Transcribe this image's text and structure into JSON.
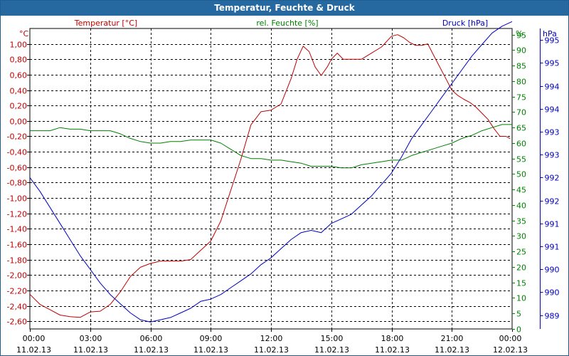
{
  "window": {
    "title": "Temperatur, Feuchte & Druck"
  },
  "chart_data": {
    "type": "line",
    "title": "Temperatur, Feuchte & Druck",
    "colors": {
      "temperature": "#c00000",
      "humidity": "#008000",
      "pressure": "#0000c0",
      "grid": "#000000"
    },
    "grid": true,
    "axes": {
      "temperature": {
        "side": "left",
        "unit": "°C",
        "label": "Temperatur [°C]",
        "range": [
          -2.7,
          1.2
        ],
        "ticks": [
          "1,00",
          "0,80",
          "0,60",
          "0,40",
          "0,20",
          "0,00",
          "-0,20",
          "-0,40",
          "-0,60",
          "-0,80",
          "-1,00",
          "-1,20",
          "-1,40",
          "-1,60",
          "-1,80",
          "-2,00",
          "-2,20",
          "-2,40",
          "-2,60"
        ]
      },
      "humidity": {
        "side": "right",
        "unit": "%",
        "label": "rel. Feuchte [%]",
        "range": [
          0,
          97
        ],
        "ticks": [
          "95",
          "90",
          "85",
          "80",
          "75",
          "70",
          "65",
          "60",
          "55",
          "50",
          "45",
          "40",
          "35",
          "30",
          "25",
          "20",
          "15",
          "10",
          "5",
          "0"
        ]
      },
      "pressure": {
        "side": "right",
        "unit": "hPa",
        "label": "Druck [hPa]",
        "range": [
          988.7,
          995.25
        ],
        "ticks": [
          "995",
          "995",
          "994",
          "994",
          "993",
          "993",
          "992",
          "992",
          "991",
          "991",
          "990",
          "990",
          "989"
        ]
      }
    },
    "x": {
      "range_hours": [
        0,
        24
      ],
      "ticks": [
        {
          "time": "00:00",
          "date": "11.02.13"
        },
        {
          "time": "03:00",
          "date": "11.02.13"
        },
        {
          "time": "06:00",
          "date": "11.02.13"
        },
        {
          "time": "09:00",
          "date": "11.02.13"
        },
        {
          "time": "12:00",
          "date": "11.02.13"
        },
        {
          "time": "15:00",
          "date": "11.02.13"
        },
        {
          "time": "18:00",
          "date": "11.02.13"
        },
        {
          "time": "21:00",
          "date": "11.02.13"
        },
        {
          "time": "00:00",
          "date": "12.02.13"
        }
      ]
    },
    "series": [
      {
        "name": "Temperatur [°C]",
        "axis": "temperature",
        "x": [
          0,
          0.5,
          1,
          1.5,
          2,
          2.5,
          3,
          3.5,
          4,
          4.5,
          5,
          5.5,
          6,
          6.5,
          7,
          7.5,
          8,
          8.5,
          9,
          9.5,
          10,
          10.5,
          11,
          11.5,
          12,
          12.5,
          13,
          13.3,
          13.6,
          13.9,
          14.2,
          14.5,
          14.8,
          15,
          15.3,
          15.6,
          16,
          16.5,
          17,
          17.5,
          18,
          18.3,
          18.6,
          18.9,
          19.2,
          19.5,
          19.8,
          20.1,
          20.4,
          20.7,
          21,
          21.3,
          21.6,
          21.9,
          22.2,
          22.5,
          22.8,
          23.1,
          23.4,
          23.7,
          23.9
        ],
        "values": [
          -2.25,
          -2.38,
          -2.45,
          -2.52,
          -2.54,
          -2.55,
          -2.48,
          -2.47,
          -2.38,
          -2.22,
          -2.02,
          -1.9,
          -1.85,
          -1.82,
          -1.82,
          -1.82,
          -1.8,
          -1.68,
          -1.56,
          -1.3,
          -0.9,
          -0.5,
          -0.05,
          0.12,
          0.14,
          0.22,
          0.55,
          0.8,
          0.97,
          0.9,
          0.7,
          0.59,
          0.7,
          0.8,
          0.88,
          0.8,
          0.8,
          0.8,
          0.88,
          0.96,
          1.1,
          1.12,
          1.08,
          1.02,
          0.98,
          0.98,
          1.0,
          0.85,
          0.7,
          0.55,
          0.4,
          0.33,
          0.28,
          0.24,
          0.18,
          0.1,
          0.02,
          -0.1,
          -0.2,
          -0.2,
          -0.23
        ]
      },
      {
        "name": "rel. Feuchte [%]",
        "axis": "humidity",
        "x": [
          0,
          0.5,
          1,
          1.5,
          2,
          2.5,
          3,
          3.5,
          4,
          4.5,
          5,
          5.5,
          6,
          6.5,
          7,
          7.5,
          8,
          8.5,
          9,
          9.5,
          10,
          10.5,
          11,
          11.5,
          12,
          12.5,
          13,
          13.5,
          14,
          14.5,
          15,
          15.5,
          16,
          16.5,
          17,
          17.5,
          18,
          18.5,
          19,
          19.5,
          20,
          20.5,
          21,
          21.5,
          22,
          22.5,
          23,
          23.5,
          24
        ],
        "values": [
          64,
          64,
          64,
          65,
          64.5,
          64.5,
          64,
          64,
          64,
          63,
          61.5,
          60.5,
          60,
          60,
          60.5,
          60.5,
          61,
          61,
          61,
          60,
          58,
          56,
          55,
          55,
          54.5,
          54.5,
          54,
          53.5,
          52.5,
          52.5,
          52.5,
          52,
          52,
          53,
          53.5,
          54,
          54.5,
          54.5,
          56,
          57,
          58,
          59,
          60,
          61.5,
          62.5,
          64,
          65,
          66,
          66
        ]
      },
      {
        "name": "Druck [hPa]",
        "axis": "pressure",
        "x": [
          0,
          0.5,
          1,
          1.5,
          2,
          2.5,
          3,
          3.5,
          4,
          4.5,
          5,
          5.5,
          6,
          6.5,
          7,
          7.5,
          8,
          8.5,
          9,
          9.5,
          10,
          10.5,
          11,
          11.5,
          12,
          12.5,
          13,
          13.5,
          14,
          14.5,
          15,
          15.5,
          16,
          16.5,
          17,
          17.5,
          18,
          18.5,
          19,
          19.5,
          20,
          20.5,
          21,
          21.5,
          22,
          22.5,
          23,
          23.5,
          24
        ],
        "values": [
          992,
          991.7,
          991.35,
          991,
          990.65,
          990.3,
          990,
          989.7,
          989.45,
          989.25,
          989.05,
          988.9,
          988.85,
          988.9,
          988.95,
          989.05,
          989.15,
          989.3,
          989.35,
          989.45,
          989.6,
          989.75,
          989.9,
          990.1,
          990.25,
          990.45,
          990.65,
          990.8,
          990.85,
          990.8,
          991,
          991.1,
          991.2,
          991.4,
          991.6,
          991.85,
          992.1,
          992.45,
          992.85,
          993.15,
          993.45,
          993.75,
          994.05,
          994.35,
          994.65,
          994.9,
          995.15,
          995.3,
          995.4
        ]
      }
    ]
  }
}
